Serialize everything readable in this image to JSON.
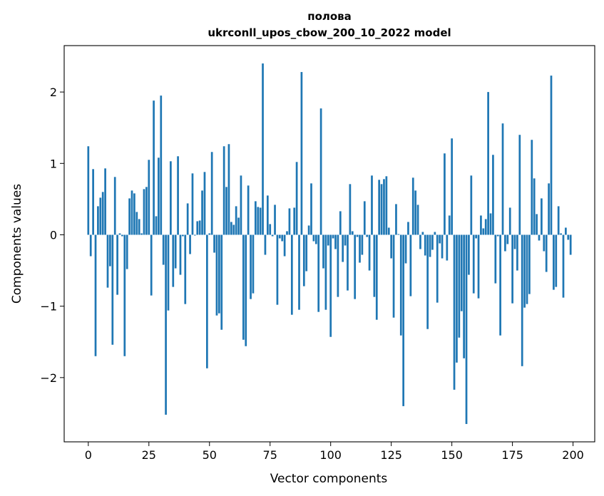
{
  "chart_data": {
    "type": "bar",
    "title": "полова",
    "subtitle": "ukrconll_upos_cbow_200_10_2022 model",
    "xlabel": "Vector components",
    "ylabel": "Components values",
    "xlim": [
      -9.95,
      208.95
    ],
    "ylim": [
      -2.9,
      2.65
    ],
    "xticks": [
      0,
      25,
      50,
      75,
      100,
      125,
      150,
      175,
      200
    ],
    "yticks": [
      -2,
      -1,
      0,
      1,
      2
    ],
    "ytick_labels": [
      "−2",
      "−1",
      "0",
      "1",
      "2"
    ],
    "bar_color": "#1f77b4",
    "grid": false,
    "legend": "none",
    "x": [
      0,
      1,
      2,
      3,
      4,
      5,
      6,
      7,
      8,
      9,
      10,
      11,
      12,
      13,
      14,
      15,
      16,
      17,
      18,
      19,
      20,
      21,
      22,
      23,
      24,
      25,
      26,
      27,
      28,
      29,
      30,
      31,
      32,
      33,
      34,
      35,
      36,
      37,
      38,
      39,
      40,
      41,
      42,
      43,
      44,
      45,
      46,
      47,
      48,
      49,
      50,
      51,
      52,
      53,
      54,
      55,
      56,
      57,
      58,
      59,
      60,
      61,
      62,
      63,
      64,
      65,
      66,
      67,
      68,
      69,
      70,
      71,
      72,
      73,
      74,
      75,
      76,
      77,
      78,
      79,
      80,
      81,
      82,
      83,
      84,
      85,
      86,
      87,
      88,
      89,
      90,
      91,
      92,
      93,
      94,
      95,
      96,
      97,
      98,
      99,
      100,
      101,
      102,
      103,
      104,
      105,
      106,
      107,
      108,
      109,
      110,
      111,
      112,
      113,
      114,
      115,
      116,
      117,
      118,
      119,
      120,
      121,
      122,
      123,
      124,
      125,
      126,
      127,
      128,
      129,
      130,
      131,
      132,
      133,
      134,
      135,
      136,
      137,
      138,
      139,
      140,
      141,
      142,
      143,
      144,
      145,
      146,
      147,
      148,
      149,
      150,
      151,
      152,
      153,
      154,
      155,
      156,
      157,
      158,
      159,
      160,
      161,
      162,
      163,
      164,
      165,
      166,
      167,
      168,
      169,
      170,
      171,
      172,
      173,
      174,
      175,
      176,
      177,
      178,
      179,
      180,
      181,
      182,
      183,
      184,
      185,
      186,
      187,
      188,
      189,
      190,
      191,
      192,
      193,
      194,
      195,
      196,
      197,
      198,
      199
    ],
    "values": [
      1.24,
      -0.3,
      0.92,
      -1.7,
      0.4,
      0.52,
      0.6,
      0.93,
      -0.74,
      -0.44,
      -1.54,
      0.81,
      -0.84,
      0.02,
      -0.02,
      -1.7,
      -0.48,
      0.51,
      0.62,
      0.58,
      0.32,
      0.22,
      0.02,
      0.64,
      0.67,
      1.05,
      -0.85,
      1.88,
      0.26,
      1.08,
      1.95,
      -0.42,
      -2.52,
      -1.06,
      1.03,
      -0.73,
      -0.47,
      1.1,
      -0.56,
      -0.02,
      -0.97,
      0.44,
      -0.27,
      0.86,
      -0.01,
      0.19,
      0.2,
      0.62,
      0.88,
      -1.87,
      0.02,
      1.16,
      -0.25,
      -1.13,
      -1.1,
      -1.33,
      1.24,
      0.67,
      1.27,
      0.18,
      0.14,
      0.4,
      0.24,
      0.83,
      -1.47,
      -1.56,
      0.69,
      -0.9,
      -0.82,
      0.47,
      0.39,
      0.38,
      2.4,
      -0.28,
      0.55,
      0.15,
      -0.02,
      0.42,
      -0.98,
      -0.05,
      -0.09,
      -0.3,
      0.05,
      0.37,
      -1.12,
      0.38,
      1.02,
      -1.05,
      2.28,
      -0.72,
      -0.51,
      0.13,
      0.72,
      -0.09,
      -0.13,
      -1.08,
      1.77,
      -0.47,
      -1.05,
      -0.15,
      -1.43,
      -0.05,
      -0.2,
      -0.87,
      0.33,
      -0.38,
      -0.15,
      -0.78,
      0.71,
      0.05,
      -0.9,
      -0.03,
      -0.39,
      -0.28,
      0.47,
      -0.03,
      -0.5,
      0.83,
      -0.87,
      -1.19,
      0.77,
      0.71,
      0.78,
      0.82,
      0.1,
      -0.33,
      -1.16,
      0.43,
      0.01,
      -1.41,
      -2.4,
      -0.4,
      0.18,
      -0.86,
      0.8,
      0.62,
      0.42,
      -0.2,
      0.04,
      -0.29,
      -1.32,
      -0.31,
      -0.21,
      0.04,
      -0.95,
      -0.12,
      -0.33,
      1.14,
      -0.36,
      0.27,
      1.35,
      -2.17,
      -1.79,
      -1.44,
      -1.07,
      -1.73,
      -2.65,
      -0.56,
      0.83,
      -0.82,
      -0.05,
      -0.89,
      0.27,
      0.09,
      0.22,
      2.0,
      0.3,
      1.12,
      -0.68,
      -0.02,
      -1.41,
      1.56,
      -0.23,
      -0.13,
      0.38,
      -0.96,
      -0.2,
      -0.5,
      1.4,
      -1.84,
      -1.02,
      -0.97,
      -0.83,
      1.33,
      0.79,
      0.29,
      -0.08,
      0.51,
      -0.23,
      -0.52,
      0.72,
      2.23,
      -0.77,
      -0.73,
      0.4,
      0.02,
      -0.88,
      0.1,
      -0.07,
      -0.28
    ]
  }
}
